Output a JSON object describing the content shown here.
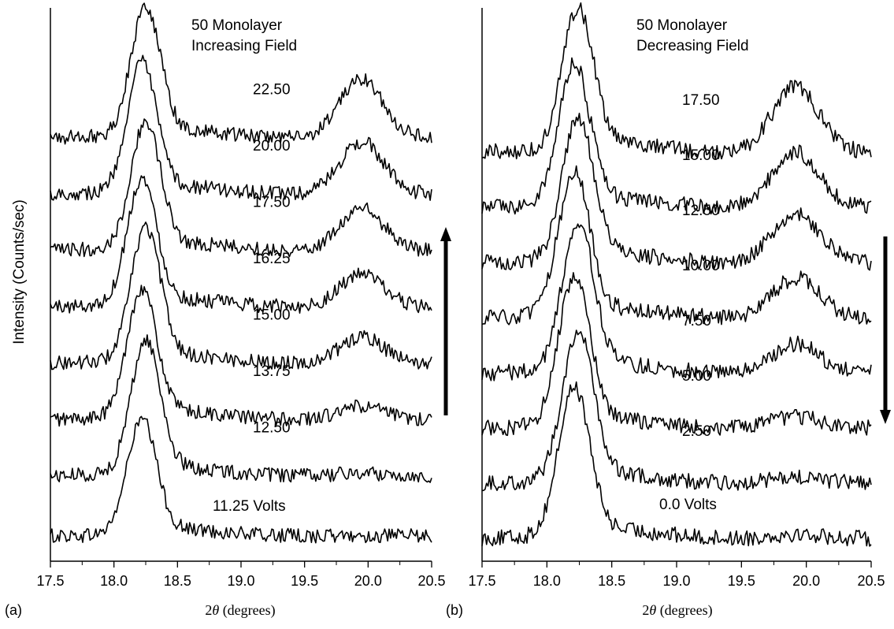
{
  "figure": {
    "ylabel": "Intensity (Counts/sec)"
  },
  "chart_data": [
    {
      "type": "line",
      "panel_label": "(a)",
      "title_line1": "50 Monolayer",
      "title_line2": "Increasing Field",
      "xlabel_prefix": "2",
      "xlabel_theta": "θ",
      "xlabel_suffix": " (degrees)",
      "ylabel": "Intensity (Counts/sec)",
      "xlim": [
        17.5,
        20.5
      ],
      "x_ticks": [
        "17.5",
        "18.0",
        "18.5",
        "19.0",
        "19.5",
        "20.0",
        "20.5"
      ],
      "y_ticks": "none",
      "arrow": "up",
      "peaks": {
        "main_center": 18.23,
        "main_width": 0.115,
        "secondary_center": 19.95,
        "secondary_width": 0.17
      },
      "series": [
        {
          "name": "11.25 Volts",
          "label": "11.25 Volts",
          "peak1_rel": 0.86,
          "peak2_rel": 0.0,
          "baseline_rel": 0.0
        },
        {
          "name": "12.50",
          "label": "12.50",
          "peak1_rel": 1.0,
          "peak2_rel": 0.02,
          "baseline_rel": 0.05
        },
        {
          "name": "13.75",
          "label": "13.75",
          "peak1_rel": 0.97,
          "peak2_rel": 0.1,
          "baseline_rel": 0.05
        },
        {
          "name": "15.00",
          "label": "15.00",
          "peak1_rel": 1.0,
          "peak2_rel": 0.2,
          "baseline_rel": 0.05
        },
        {
          "name": "16.25",
          "label": "16.25",
          "peak1_rel": 0.95,
          "peak2_rel": 0.25,
          "baseline_rel": 0.05
        },
        {
          "name": "17.50",
          "label": "17.50",
          "peak1_rel": 0.95,
          "peak2_rel": 0.32,
          "baseline_rel": 0.05
        },
        {
          "name": "20.00",
          "label": "20.00",
          "peak1_rel": 0.97,
          "peak2_rel": 0.4,
          "baseline_rel": 0.05
        },
        {
          "name": "22.50",
          "label": "22.50",
          "peak1_rel": 0.97,
          "peak2_rel": 0.45,
          "baseline_rel": 0.05
        }
      ]
    },
    {
      "type": "line",
      "panel_label": "(b)",
      "title_line1": "50 Monolayer",
      "title_line2": "Decreasing Field",
      "xlabel_prefix": "2",
      "xlabel_theta": "θ",
      "xlabel_suffix": " (degrees)",
      "xlim": [
        17.5,
        20.5
      ],
      "x_ticks": [
        "17.5",
        "18.0",
        "18.5",
        "19.0",
        "19.5",
        "20.0",
        "20.5"
      ],
      "y_ticks": "none",
      "arrow": "down",
      "peaks": {
        "main_center": 18.22,
        "main_width": 0.12,
        "secondary_center": 19.92,
        "secondary_width": 0.18
      },
      "series": [
        {
          "name": "0.0 Volts",
          "label": "0.0 Volts",
          "peak1_rel": 1.0,
          "peak2_rel": 0.03,
          "baseline_rel": 0.0
        },
        {
          "name": "2.50",
          "label": "2.50",
          "peak1_rel": 1.0,
          "peak2_rel": 0.04,
          "baseline_rel": 0.0
        },
        {
          "name": "5.00",
          "label": "5.00",
          "peak1_rel": 1.0,
          "peak2_rel": 0.08,
          "baseline_rel": 0.0
        },
        {
          "name": "7.50",
          "label": "7.50",
          "peak1_rel": 1.0,
          "peak2_rel": 0.2,
          "baseline_rel": 0.0
        },
        {
          "name": "10.00",
          "label": "10.00",
          "peak1_rel": 0.97,
          "peak2_rel": 0.27,
          "baseline_rel": 0.0
        },
        {
          "name": "12.50",
          "label": "12.50",
          "peak1_rel": 0.95,
          "peak2_rel": 0.33,
          "baseline_rel": 0.0
        },
        {
          "name": "15.00",
          "label": "15.00",
          "peak1_rel": 0.95,
          "peak2_rel": 0.38,
          "baseline_rel": 0.0
        },
        {
          "name": "17.50",
          "label": "17.50",
          "peak1_rel": 0.95,
          "peak2_rel": 0.45,
          "baseline_rel": 0.0
        }
      ]
    }
  ]
}
